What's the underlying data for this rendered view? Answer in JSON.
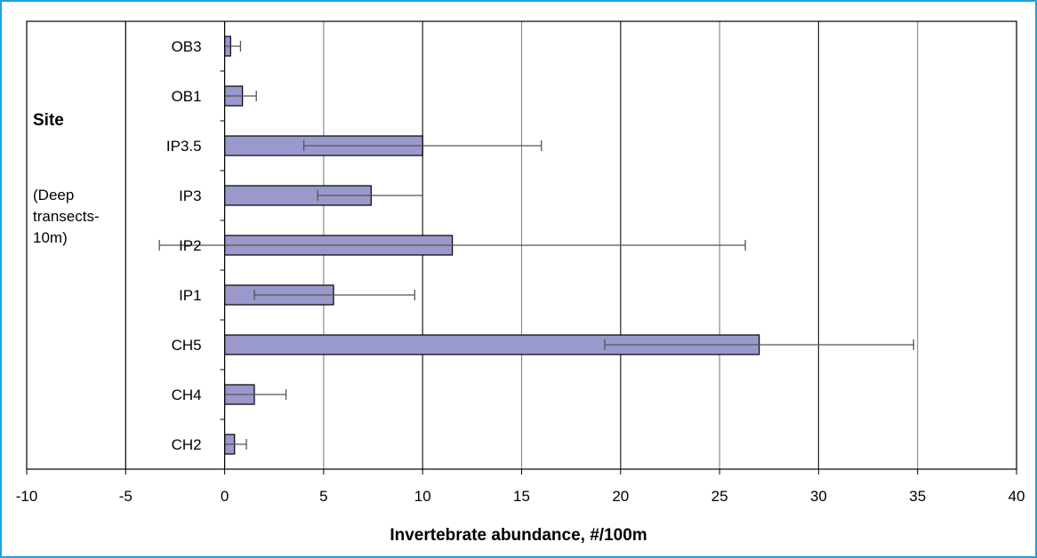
{
  "chart_data": {
    "type": "bar",
    "orientation": "horizontal",
    "title": "",
    "xlabel": "Invertebrate abundance, #/100m",
    "ylabel": "Site",
    "ylabel_note": "(Deep transects-10m)",
    "xlim": [
      -10,
      40
    ],
    "x_ticks": [
      -10,
      -5,
      0,
      5,
      10,
      15,
      20,
      25,
      30,
      35,
      40
    ],
    "categories": [
      "OB3",
      "OB1",
      "IP3.5",
      "IP3",
      "IP2",
      "IP1",
      "CH5",
      "CH4",
      "CH2"
    ],
    "values": [
      0.3,
      0.9,
      10.0,
      7.4,
      11.5,
      5.5,
      27.0,
      1.5,
      0.5
    ],
    "error_low": [
      0.0,
      0.0,
      4.0,
      4.7,
      -3.3,
      1.5,
      19.2,
      0.0,
      0.0
    ],
    "error_high": [
      0.8,
      1.6,
      16.0,
      10.0,
      26.3,
      9.6,
      34.8,
      3.1,
      1.1
    ],
    "grid": "vertical",
    "bar_color": "#9999cc",
    "bar_edge_color": "#000000",
    "legend": "none"
  }
}
